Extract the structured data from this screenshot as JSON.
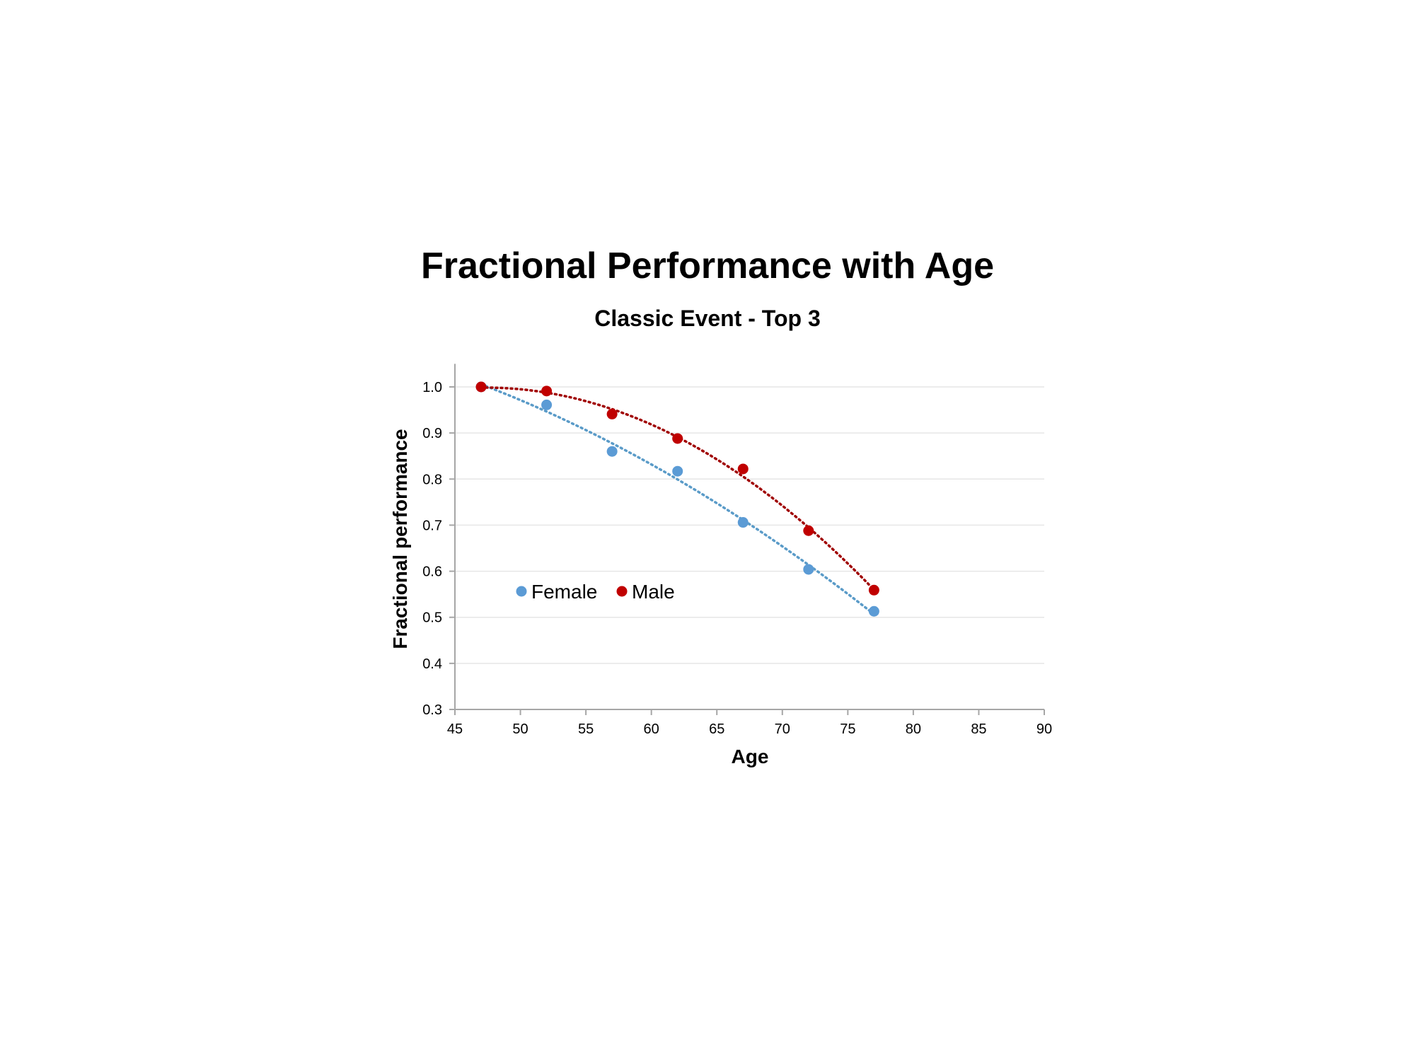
{
  "chart_data": {
    "type": "scatter",
    "title": "Fractional Performance with Age",
    "subtitle": "Classic Event - Top 3",
    "xlabel": "Age",
    "ylabel": "Fractional performance",
    "xlim": [
      45,
      90
    ],
    "ylim": [
      0.3,
      1.05
    ],
    "xticks": [
      45,
      50,
      55,
      60,
      65,
      70,
      75,
      80,
      85,
      90
    ],
    "xtick_labels": [
      "45",
      "50",
      "55",
      "60",
      "65",
      "70",
      "75",
      "80",
      "85",
      "90"
    ],
    "yticks": [
      0.3,
      0.4,
      0.5,
      0.6,
      0.7,
      0.8,
      0.9,
      1.0
    ],
    "ytick_labels": [
      "0.3",
      "0.4",
      "0.5",
      "0.6",
      "0.7",
      "0.8",
      "0.9",
      "1.0"
    ],
    "grid": "horizontal",
    "legend_position": "inside-bottom-left",
    "trendline": "polynomial, dotted",
    "series": [
      {
        "name": "Female",
        "color": "#5B9BD5",
        "trend_color": "#5A9BC8",
        "x": [
          47,
          52,
          57,
          62,
          67,
          72,
          77
        ],
        "y": [
          1.0,
          0.961,
          0.86,
          0.817,
          0.706,
          0.604,
          0.513
        ]
      },
      {
        "name": "Male",
        "color": "#C00000",
        "trend_color": "#A00000",
        "x": [
          47,
          52,
          57,
          62,
          67,
          72,
          77
        ],
        "y": [
          1.0,
          0.991,
          0.941,
          0.888,
          0.822,
          0.688,
          0.559
        ]
      }
    ]
  }
}
